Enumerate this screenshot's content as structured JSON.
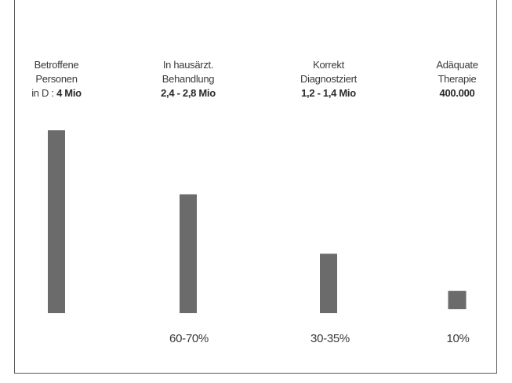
{
  "chart_data": {
    "type": "bar",
    "categories": [
      {
        "lines": [
          "Betroffene",
          "Personen"
        ],
        "prefix": "in D : ",
        "value_text": "4 Mio"
      },
      {
        "lines": [
          "In hausärzt.",
          "Behandlung"
        ],
        "prefix": "",
        "value_text": "2,4 - 2,8 Mio"
      },
      {
        "lines": [
          "Korrekt",
          "Diagnostziert"
        ],
        "prefix": "",
        "value_text": "1,2 - 1,4 Mio"
      },
      {
        "lines": [
          "Adäquate",
          "Therapie"
        ],
        "prefix": "",
        "value_text": "400.000"
      }
    ],
    "values": [
      4000000,
      2600000,
      1300000,
      400000
    ],
    "percent_labels": [
      "",
      "60-70%",
      "30-35%",
      "10%"
    ],
    "bar_color": "#6b6b6b",
    "axes": "none",
    "grid": false,
    "legend": "none"
  }
}
